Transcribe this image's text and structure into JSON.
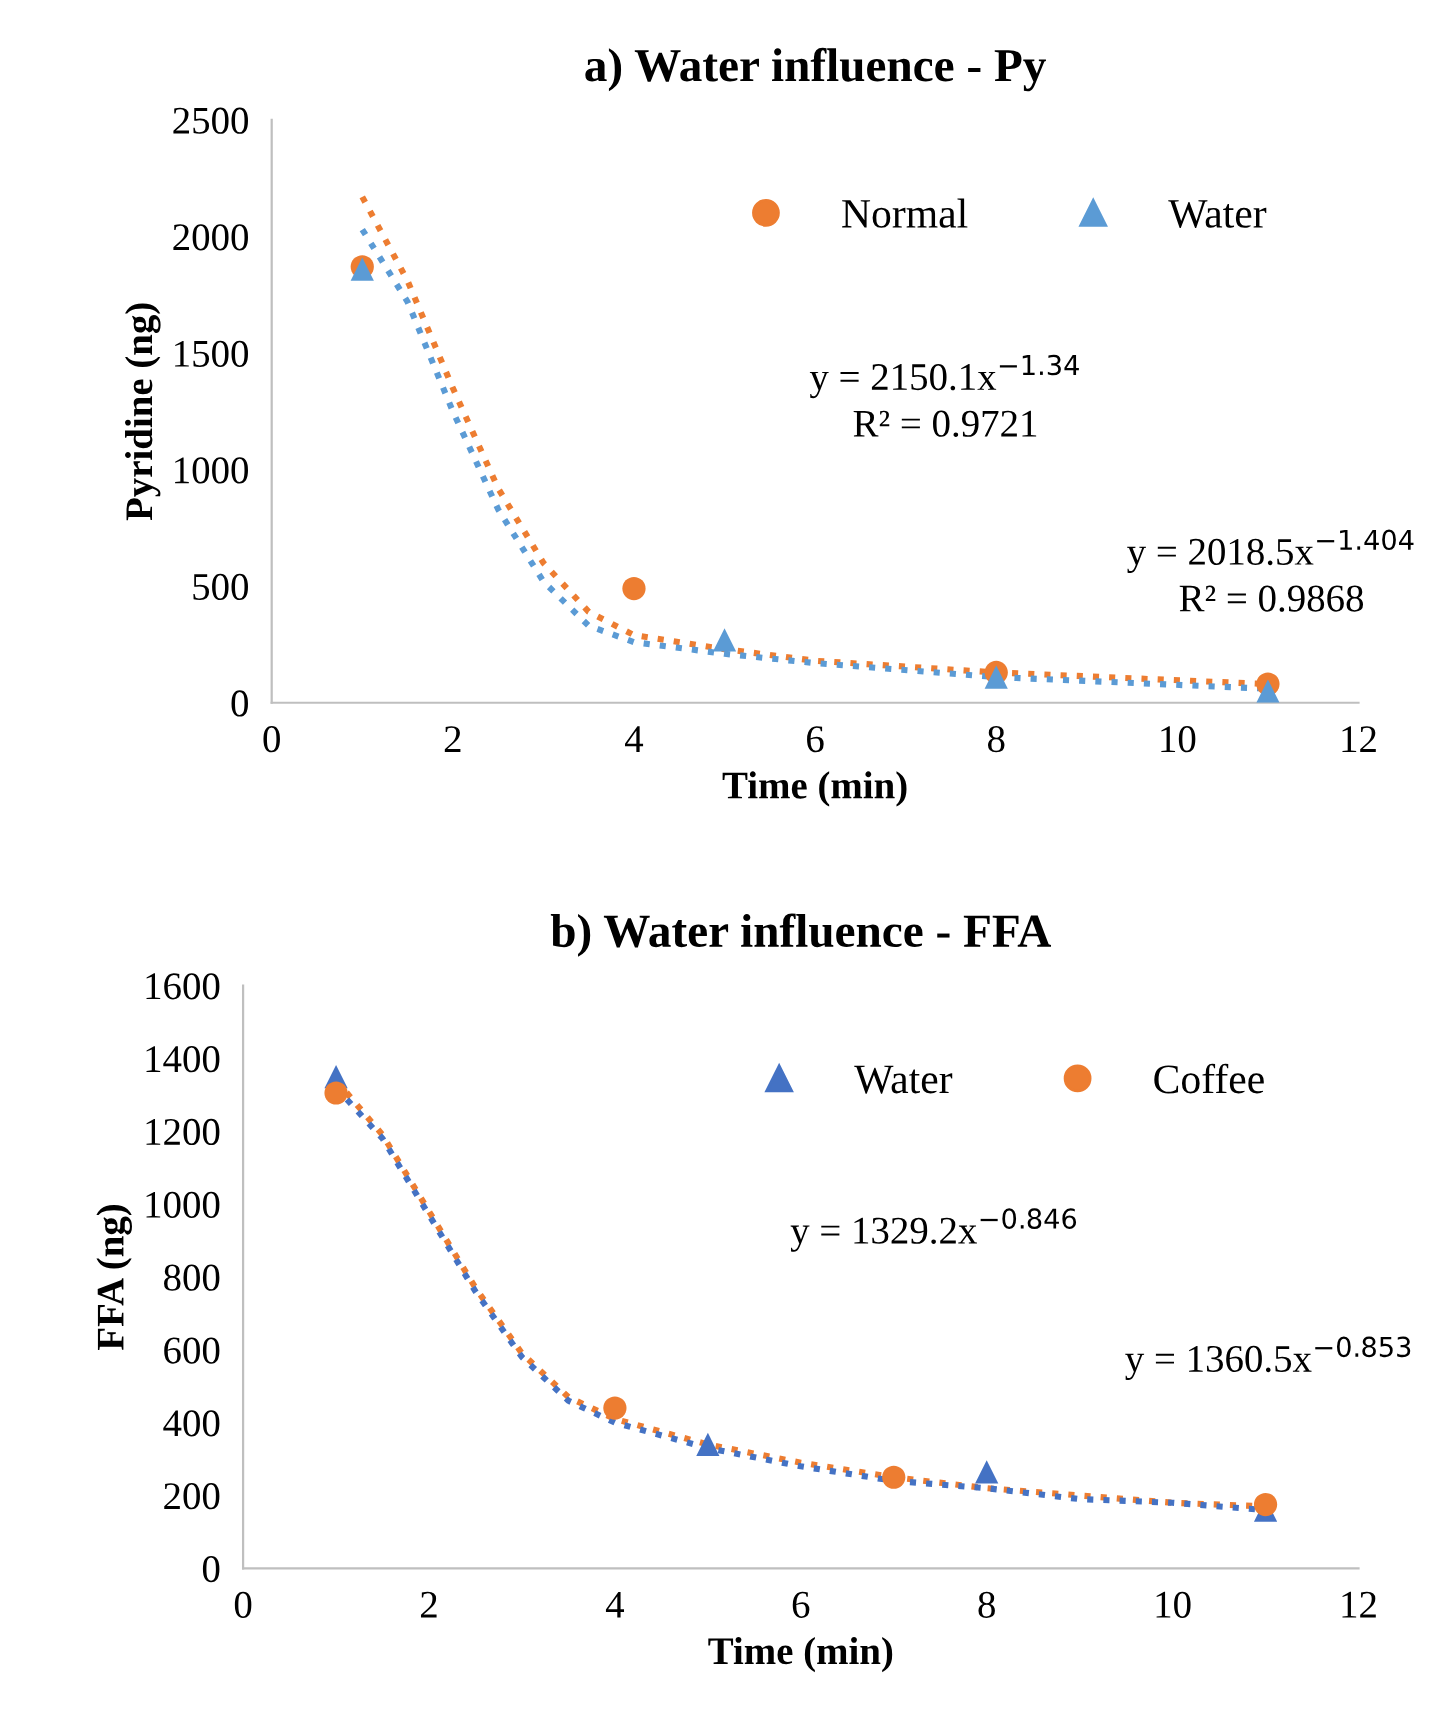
{
  "chart_data": [
    {
      "type": "scatter",
      "title": "a) Water influence - Py",
      "xlabel": "Time (min)",
      "ylabel": "Pyridine (ng)",
      "xlim": [
        0,
        12
      ],
      "xticks": [
        0,
        2,
        4,
        6,
        8,
        10,
        12
      ],
      "ylim": [
        0,
        2500
      ],
      "yticks": [
        0,
        500,
        1000,
        1500,
        2000,
        2500
      ],
      "grid": false,
      "legend": "top right",
      "series": [
        {
          "name": "Normal",
          "marker": "circle",
          "color": "#ed7d31",
          "x": [
            1,
            4,
            8,
            11
          ],
          "values": [
            1870,
            490,
            130,
            80
          ]
        },
        {
          "name": "Water",
          "marker": "triangle",
          "color": "#5b9bd5",
          "x": [
            1,
            5,
            8,
            11
          ],
          "values": [
            1860,
            270,
            110,
            50
          ]
        },
        {
          "type": "line",
          "line_style": "dotted",
          "marker": "none",
          "color": "#ed7d31",
          "x": [
            1,
            1.5,
            2,
            2.5,
            3,
            3.5,
            4,
            5,
            6,
            8,
            11
          ],
          "values": [
            2170,
            1810,
            1350,
            920,
            600,
            390,
            290,
            230,
            180,
            130,
            80
          ]
        },
        {
          "type": "line",
          "line_style": "dotted",
          "marker": "none",
          "color": "#5b9bd5",
          "x": [
            1,
            1.5,
            2,
            2.5,
            3,
            3.5,
            4,
            5,
            6,
            8,
            11
          ],
          "values": [
            2030,
            1720,
            1250,
            830,
            520,
            330,
            260,
            210,
            170,
            110,
            60
          ]
        }
      ],
      "annotations": [
        "y = 2150.1x$^{−1.34}$\nR² = 0.9721",
        "y = 2018.5x$^{−1.404}$\nR² = 0.9868"
      ]
    },
    {
      "type": "scatter",
      "title": "b) Water influence - FFA",
      "xlabel": "Time (min)",
      "ylabel": "FFA (ng)",
      "xlim": [
        0,
        12
      ],
      "xticks": [
        0,
        2,
        4,
        6,
        8,
        10,
        12
      ],
      "ylim": [
        0,
        1600
      ],
      "yticks": [
        0,
        200,
        400,
        600,
        800,
        1000,
        1200,
        1400,
        1600
      ],
      "grid": false,
      "legend": "top right",
      "series": [
        {
          "name": "Water",
          "marker": "triangle",
          "color": "#4472c4",
          "x": [
            1,
            5,
            8,
            11
          ],
          "values": [
            1350,
            340,
            265,
            160
          ]
        },
        {
          "name": "Coffee",
          "marker": "circle",
          "color": "#ed7d31",
          "x": [
            1,
            4,
            7,
            11
          ],
          "values": [
            1305,
            440,
            250,
            175
          ]
        },
        {
          "type": "line",
          "line_style": "dotted",
          "marker": "none",
          "color": "#ed7d31",
          "x": [
            1,
            1.5,
            2,
            2.5,
            3,
            3.5,
            4,
            5,
            6,
            7,
            8,
            9,
            10,
            11
          ],
          "values": [
            1340,
            1190,
            980,
            770,
            590,
            470,
            410,
            340,
            290,
            250,
            220,
            200,
            180,
            170
          ]
        },
        {
          "type": "line",
          "line_style": "dotted",
          "marker": "none",
          "color": "#4472c4",
          "x": [
            1,
            1.5,
            2,
            2.5,
            3,
            3.5,
            4,
            5,
            6,
            7,
            8,
            9,
            10,
            11
          ],
          "values": [
            1320,
            1180,
            970,
            760,
            580,
            460,
            400,
            330,
            280,
            240,
            220,
            190,
            180,
            160
          ]
        }
      ],
      "annotations": [
        "y = 1329.2x$^{−0.846}$",
        "y = 1360.5x$^{−0.853}$"
      ]
    }
  ]
}
